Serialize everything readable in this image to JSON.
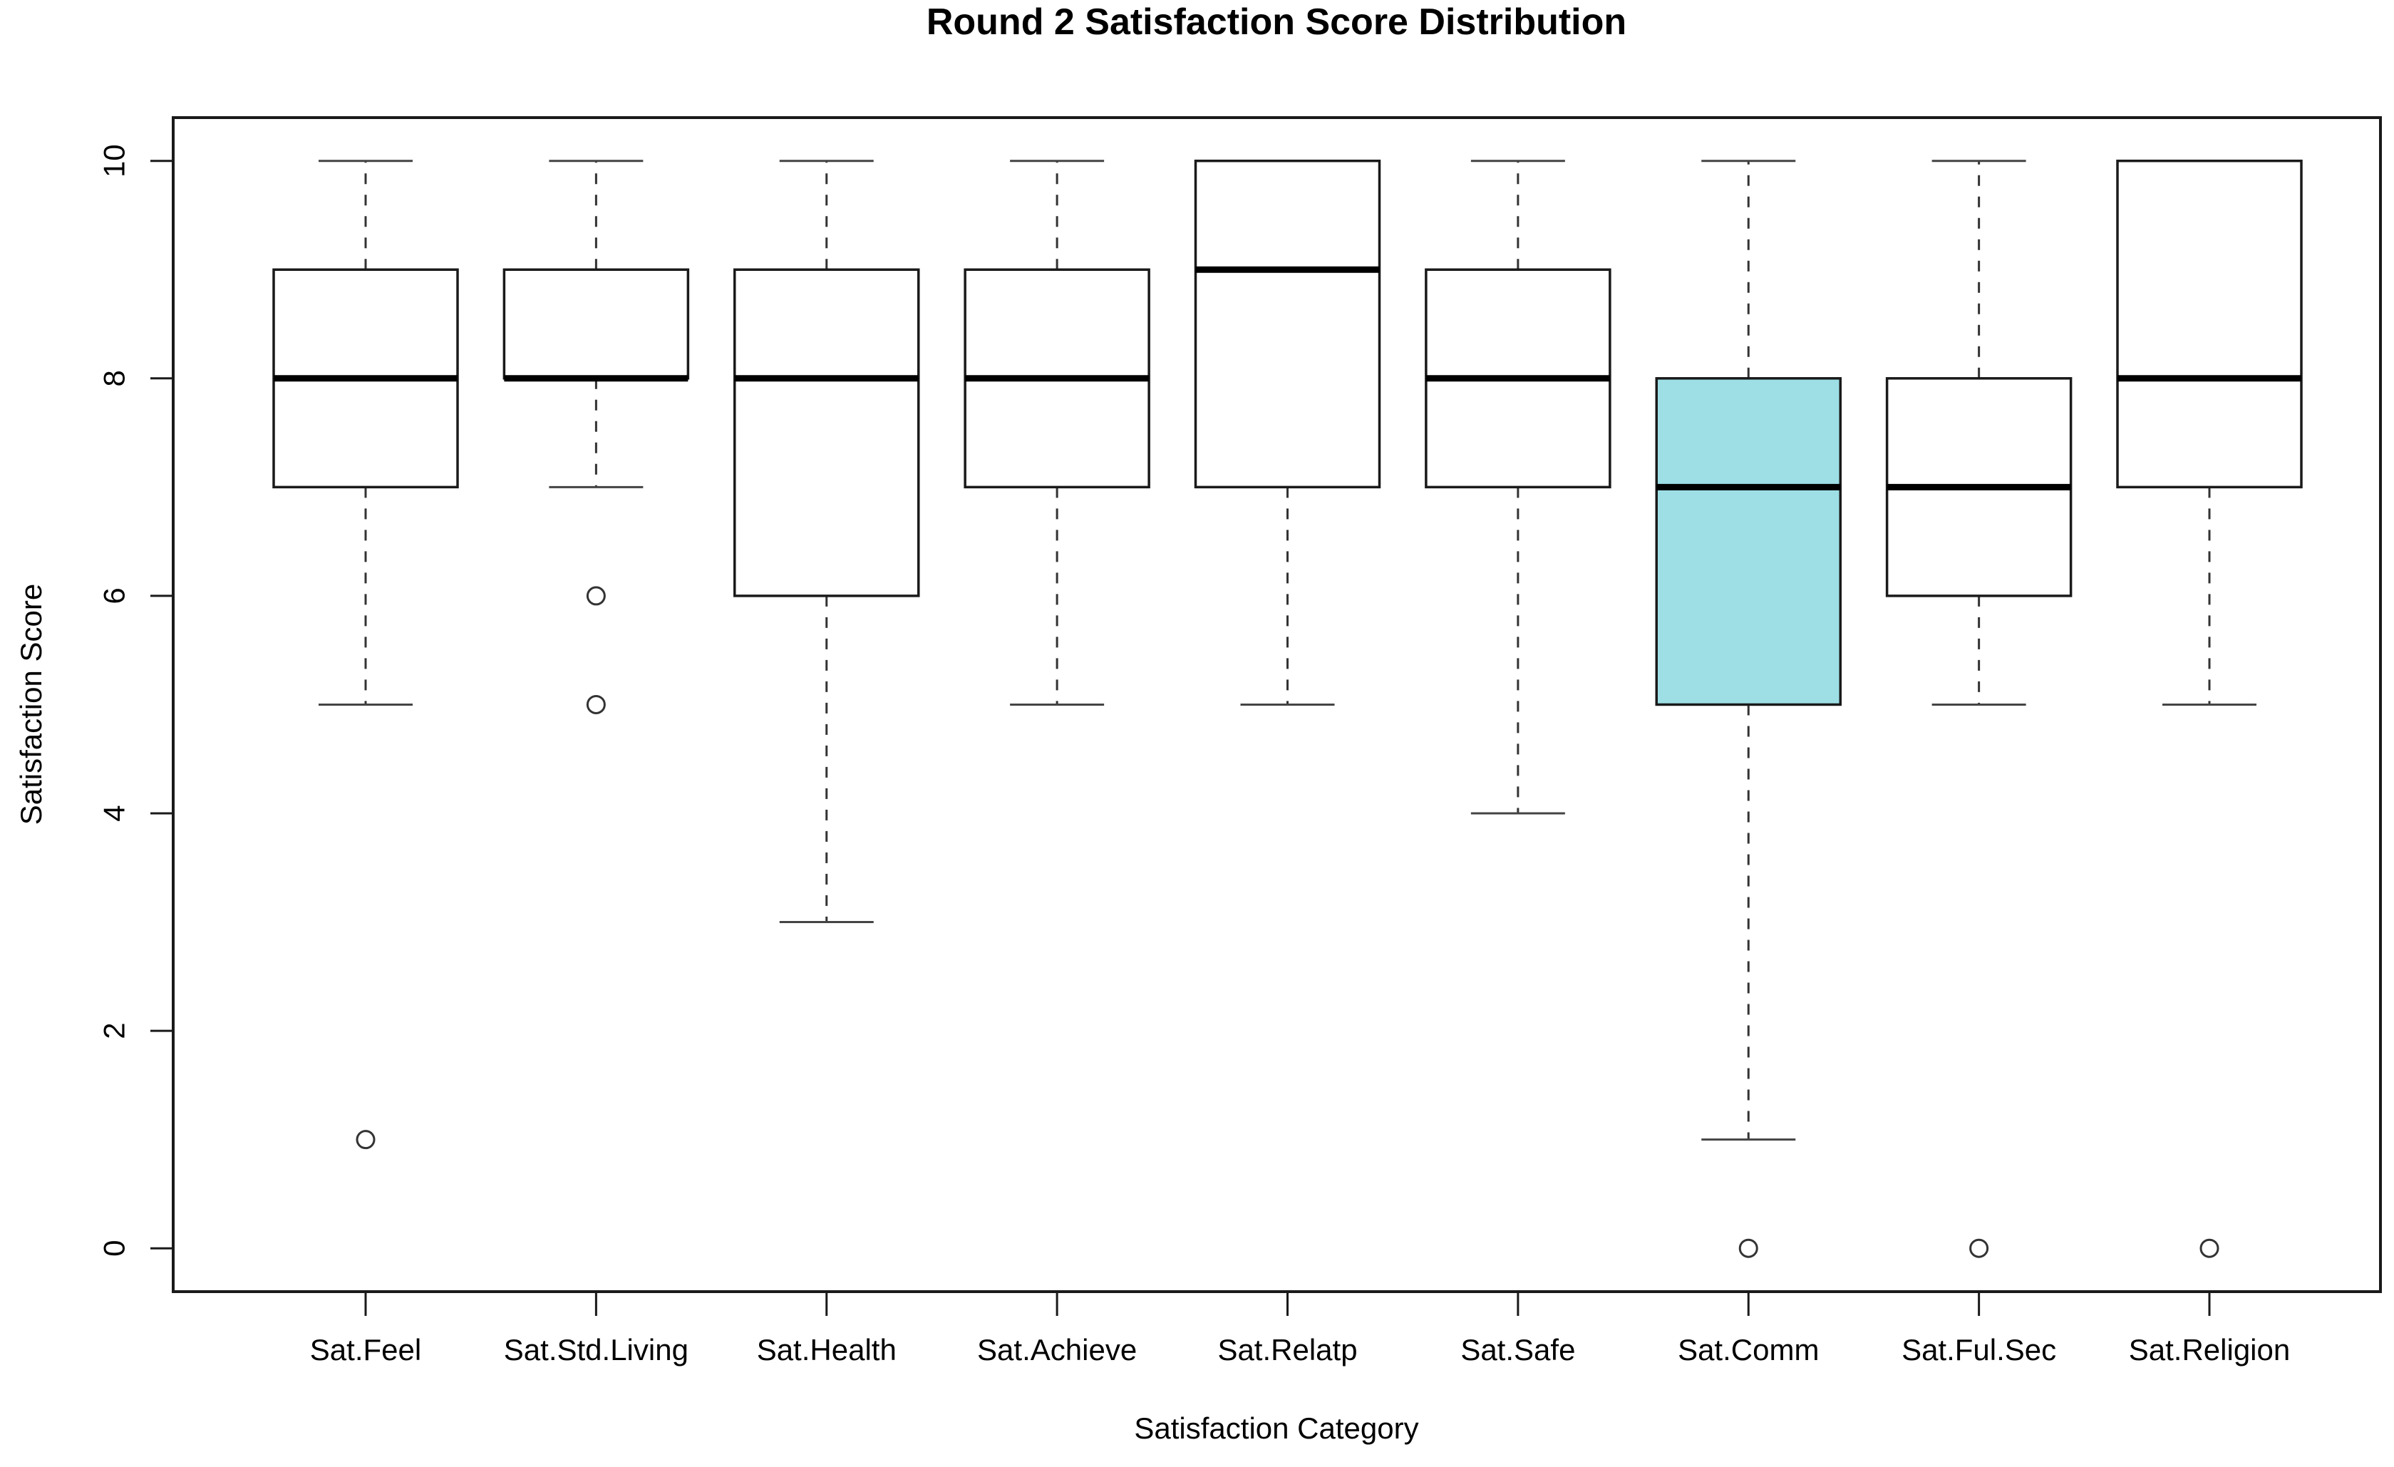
{
  "figure": {
    "background": "#FFFFFF"
  },
  "chart_data": {
    "type": "boxplot",
    "title": "Round 2 Satisfaction Score Distribution",
    "xlabel": "Satisfaction Category",
    "ylabel": "Satisfaction Score",
    "ylim": [
      0,
      10
    ],
    "yticks": [
      0,
      2,
      4,
      6,
      8,
      10
    ],
    "grid": false,
    "legend": null,
    "categories": [
      "Sat.Feel",
      "Sat.Std.Living",
      "Sat.Health",
      "Sat.Achieve",
      "Sat.Relatp",
      "Sat.Safe",
      "Sat.Comm",
      "Sat.Ful.Sec",
      "Sat.Religion"
    ],
    "boxes": [
      {
        "category": "Sat.Feel",
        "whisker_low": 5,
        "q1": 7,
        "median": 8,
        "q3": 9,
        "whisker_high": 10,
        "outliers": [
          1
        ],
        "highlighted": false
      },
      {
        "category": "Sat.Std.Living",
        "whisker_low": 7,
        "q1": 8,
        "median": 8,
        "q3": 9,
        "whisker_high": 10,
        "outliers": [
          6,
          5
        ],
        "highlighted": false
      },
      {
        "category": "Sat.Health",
        "whisker_low": 3,
        "q1": 6,
        "median": 8,
        "q3": 9,
        "whisker_high": 10,
        "outliers": [],
        "highlighted": false
      },
      {
        "category": "Sat.Achieve",
        "whisker_low": 5,
        "q1": 7,
        "median": 8,
        "q3": 9,
        "whisker_high": 10,
        "outliers": [],
        "highlighted": false
      },
      {
        "category": "Sat.Relatp",
        "whisker_low": 5,
        "q1": 7,
        "median": 9,
        "q3": 10,
        "whisker_high": 10,
        "outliers": [],
        "highlighted": false
      },
      {
        "category": "Sat.Safe",
        "whisker_low": 4,
        "q1": 7,
        "median": 8,
        "q3": 9,
        "whisker_high": 10,
        "outliers": [],
        "highlighted": false
      },
      {
        "category": "Sat.Comm",
        "whisker_low": 1,
        "q1": 5,
        "median": 7,
        "q3": 8,
        "whisker_high": 10,
        "outliers": [
          0
        ],
        "highlighted": true
      },
      {
        "category": "Sat.Ful.Sec",
        "whisker_low": 5,
        "q1": 6,
        "median": 7,
        "q3": 8,
        "whisker_high": 10,
        "outliers": [
          0
        ],
        "highlighted": false
      },
      {
        "category": "Sat.Religion",
        "whisker_low": 5,
        "q1": 7,
        "median": 8,
        "q3": 10,
        "whisker_high": 10,
        "outliers": [
          0
        ],
        "highlighted": false
      }
    ],
    "colors": {
      "highlight_fill": "#9EDFE6",
      "box_fill": "#FFFFFF",
      "line": "#1A1A1A",
      "whisker": "#333333",
      "cap": "#444444",
      "outlier_stroke": "#333333"
    }
  }
}
